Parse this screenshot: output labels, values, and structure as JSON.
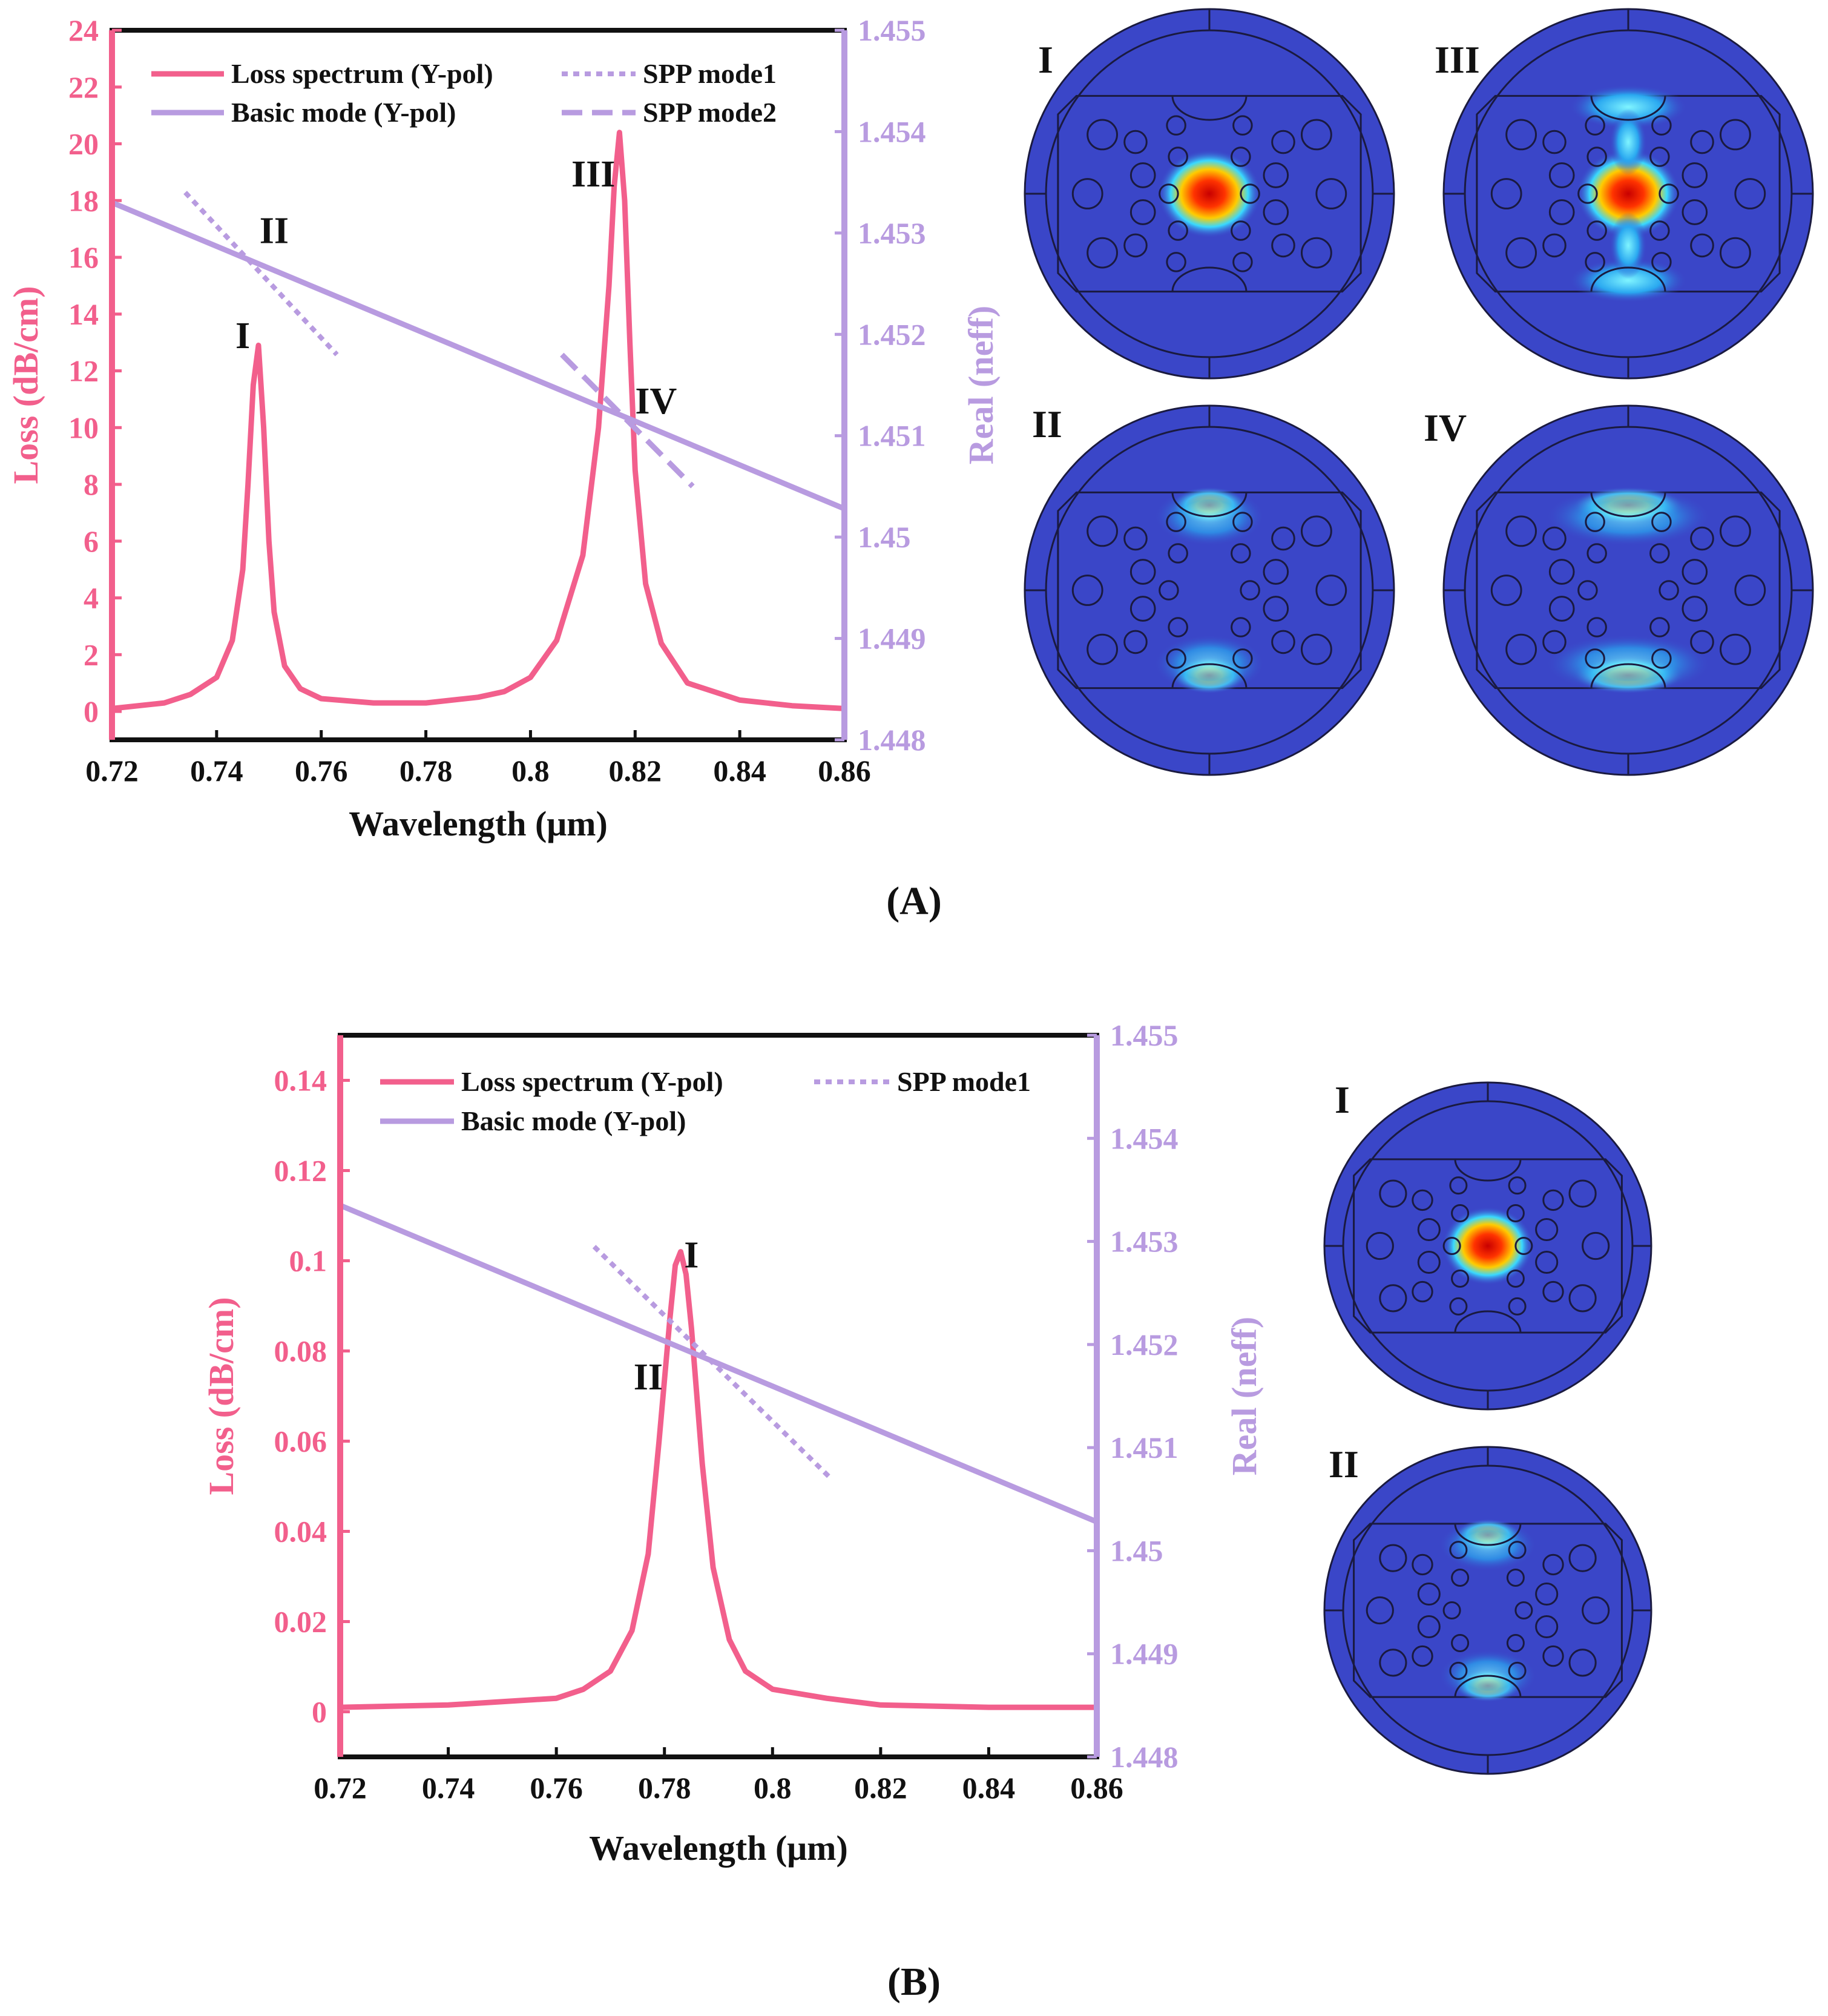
{
  "colors": {
    "loss": "#f25f8c",
    "neff": "#b89be0",
    "axis": "#111111",
    "field_bg": "#3a46c8"
  },
  "chart_data": [
    {
      "panel_label": "(A)",
      "type": "line",
      "xlabel": "Wavelength (μm)",
      "ylabel_left": "Loss (dB/cm)",
      "ylabel_right": "Real (neff)",
      "xlim": [
        0.72,
        0.86
      ],
      "ylim_left": [
        -1,
        24
      ],
      "ylim_right": [
        1.448,
        1.455
      ],
      "x_ticks": [
        "0.72",
        "0.74",
        "0.76",
        "0.78",
        "0.8",
        "0.82",
        "0.84",
        "0.86"
      ],
      "y_left_ticks": [
        "0",
        "2",
        "4",
        "6",
        "8",
        "10",
        "12",
        "14",
        "16",
        "18",
        "20",
        "22",
        "24"
      ],
      "y_right_ticks": [
        "1.448",
        "1.449",
        "1.45",
        "1.451",
        "1.452",
        "1.453",
        "1.454",
        "1.455"
      ],
      "legend": [
        "Loss spectrum (Y-pol)",
        "SPP mode1",
        "Basic mode (Y-pol)",
        "SPP mode2"
      ],
      "series": [
        {
          "name": "Loss spectrum (Y-pol)",
          "axis": "left",
          "style": "solid",
          "x": [
            0.72,
            0.73,
            0.735,
            0.74,
            0.743,
            0.745,
            0.746,
            0.747,
            0.748,
            0.749,
            0.75,
            0.751,
            0.753,
            0.756,
            0.76,
            0.77,
            0.78,
            0.79,
            0.795,
            0.8,
            0.805,
            0.81,
            0.813,
            0.815,
            0.816,
            0.817,
            0.818,
            0.819,
            0.82,
            0.822,
            0.825,
            0.83,
            0.84,
            0.85,
            0.86
          ],
          "y": [
            0.1,
            0.3,
            0.6,
            1.2,
            2.5,
            5.0,
            8.0,
            11.5,
            12.9,
            10.0,
            6.0,
            3.5,
            1.6,
            0.8,
            0.45,
            0.3,
            0.3,
            0.5,
            0.7,
            1.2,
            2.5,
            5.5,
            10.0,
            15.0,
            18.5,
            20.4,
            18.0,
            13.0,
            8.5,
            4.5,
            2.4,
            1.0,
            0.4,
            0.2,
            0.1
          ]
        },
        {
          "name": "Basic mode (Y-pol)",
          "axis": "right",
          "style": "solid",
          "x": [
            0.72,
            0.86
          ],
          "y": [
            1.4533,
            1.45028
          ]
        },
        {
          "name": "SPP mode1",
          "axis": "right",
          "style": "dotted",
          "x": [
            0.734,
            0.763
          ],
          "y": [
            1.4534,
            1.4518
          ]
        },
        {
          "name": "SPP mode2",
          "axis": "right",
          "style": "dashed",
          "x": [
            0.806,
            0.831
          ],
          "y": [
            1.4518,
            1.4505
          ]
        }
      ],
      "annotations": [
        {
          "text": "I",
          "x": 0.745,
          "y": 12.8
        },
        {
          "text": "II",
          "x": 0.751,
          "y": 16.5
        },
        {
          "text": "III",
          "x": 0.812,
          "y": 18.5
        },
        {
          "text": "IV",
          "x": 0.824,
          "y": 10.5
        }
      ]
    },
    {
      "panel_label": "(B)",
      "type": "line",
      "xlabel": "Wavelength (μm)",
      "ylabel_left": "Loss (dB/cm)",
      "ylabel_right": "Real (neff)",
      "xlim": [
        0.72,
        0.86
      ],
      "ylim_left": [
        -0.01,
        0.15
      ],
      "ylim_right": [
        1.448,
        1.455
      ],
      "x_ticks": [
        "0.72",
        "0.74",
        "0.76",
        "0.78",
        "0.8",
        "0.82",
        "0.84",
        "0.86"
      ],
      "y_left_ticks": [
        "0",
        "0.02",
        "0.04",
        "0.06",
        "0.08",
        "0.1",
        "0.12",
        "0.14"
      ],
      "y_right_ticks": [
        "1.448",
        "1.449",
        "1.45",
        "1.451",
        "1.452",
        "1.453",
        "1.454",
        "1.455"
      ],
      "legend": [
        "Loss spectrum (Y-pol)",
        "SPP mode1",
        "Basic mode (Y-pol)"
      ],
      "series": [
        {
          "name": "Loss spectrum (Y-pol)",
          "axis": "left",
          "style": "solid",
          "x": [
            0.72,
            0.74,
            0.76,
            0.765,
            0.77,
            0.774,
            0.777,
            0.779,
            0.781,
            0.782,
            0.783,
            0.784,
            0.785,
            0.787,
            0.789,
            0.792,
            0.795,
            0.8,
            0.81,
            0.82,
            0.84,
            0.86
          ],
          "y": [
            0.001,
            0.0015,
            0.003,
            0.005,
            0.009,
            0.018,
            0.035,
            0.06,
            0.087,
            0.099,
            0.102,
            0.097,
            0.085,
            0.055,
            0.032,
            0.016,
            0.009,
            0.005,
            0.003,
            0.0015,
            0.001,
            0.001
          ]
        },
        {
          "name": "Basic mode (Y-pol)",
          "axis": "right",
          "style": "solid",
          "x": [
            0.72,
            0.86
          ],
          "y": [
            1.45335,
            1.45028
          ]
        },
        {
          "name": "SPP mode1",
          "axis": "right",
          "style": "dotted",
          "x": [
            0.767,
            0.811
          ],
          "y": [
            1.45295,
            1.45069
          ]
        }
      ],
      "annotations": [
        {
          "text": "I",
          "x": 0.785,
          "y": 0.0985
        },
        {
          "text": "II",
          "x": 0.777,
          "y": 0.0715
        }
      ]
    }
  ],
  "mode_panels_a": [
    "I",
    "III",
    "II",
    "IV"
  ],
  "mode_panels_b": [
    "I",
    "II"
  ]
}
